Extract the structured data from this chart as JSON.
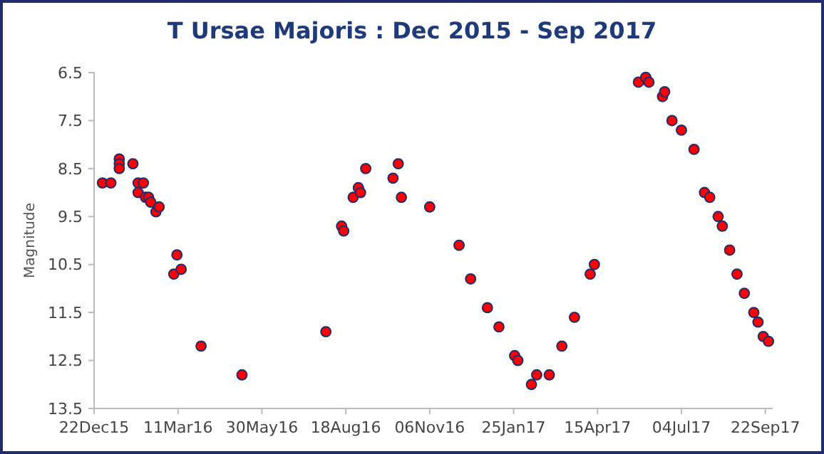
{
  "chart_data": {
    "type": "scatter",
    "title": "T Ursae Majoris :  Dec 2015 - Sep 2017",
    "ylabel": "Magnitude",
    "x": [
      "2015-12-30",
      "2016-01-07",
      "2016-01-15",
      "2016-01-15",
      "2016-01-15",
      "2016-01-28",
      "2016-02-02",
      "2016-02-02",
      "2016-02-07",
      "2016-02-09",
      "2016-02-12",
      "2016-02-14",
      "2016-02-19",
      "2016-02-22",
      "2016-03-07",
      "2016-03-10",
      "2016-03-14",
      "2016-04-02",
      "2016-05-11",
      "2016-07-30",
      "2016-08-14",
      "2016-08-16",
      "2016-08-25",
      "2016-08-30",
      "2016-09-01",
      "2016-09-06",
      "2016-10-02",
      "2016-10-07",
      "2016-10-10",
      "2016-11-06",
      "2016-12-04",
      "2016-12-15",
      "2016-12-31",
      "2017-01-11",
      "2017-01-26",
      "2017-01-29",
      "2017-02-11",
      "2017-02-16",
      "2017-02-28",
      "2017-03-12",
      "2017-03-24",
      "2017-04-08",
      "2017-04-12",
      "2017-05-24",
      "2017-05-31",
      "2017-06-03",
      "2017-06-16",
      "2017-06-18",
      "2017-06-25",
      "2017-07-04",
      "2017-07-16",
      "2017-07-26",
      "2017-07-31",
      "2017-08-08",
      "2017-08-12",
      "2017-08-19",
      "2017-08-26",
      "2017-09-02",
      "2017-09-11",
      "2017-09-15",
      "2017-09-20",
      "2017-09-25"
    ],
    "values": [
      8.8,
      8.8,
      8.3,
      8.4,
      8.5,
      8.4,
      8.8,
      9.0,
      8.8,
      9.1,
      9.1,
      9.2,
      9.4,
      9.3,
      10.7,
      10.3,
      10.6,
      12.2,
      12.8,
      11.9,
      9.7,
      9.8,
      9.1,
      8.9,
      9.0,
      8.5,
      8.7,
      8.4,
      9.1,
      9.3,
      10.1,
      10.8,
      11.4,
      11.8,
      12.4,
      12.5,
      13.0,
      12.8,
      12.8,
      12.2,
      11.6,
      10.7,
      10.5,
      6.7,
      6.6,
      6.7,
      7.0,
      6.9,
      7.5,
      7.7,
      8.1,
      9.0,
      9.1,
      9.5,
      9.7,
      10.2,
      10.7,
      11.1,
      11.5,
      11.7,
      12.0,
      12.1
    ],
    "color": "#ff0000",
    "marker": "circle",
    "xlim": [
      "2015-12-22",
      "2017-09-29"
    ],
    "xticks": [
      {
        "value": "2015-12-22",
        "label": "22Dec15"
      },
      {
        "value": "2016-03-11",
        "label": "11Mar16"
      },
      {
        "value": "2016-05-30",
        "label": "30May16"
      },
      {
        "value": "2016-08-18",
        "label": "18Aug16"
      },
      {
        "value": "2016-11-06",
        "label": "06Nov16"
      },
      {
        "value": "2017-01-25",
        "label": "25Jan17"
      },
      {
        "value": "2017-04-15",
        "label": "15Apr17"
      },
      {
        "value": "2017-07-04",
        "label": "04Jul17"
      },
      {
        "value": "2017-09-22",
        "label": "22Sep17"
      }
    ],
    "ylim": [
      13.5,
      6.5
    ],
    "yticks": [
      6.5,
      7.5,
      8.5,
      9.5,
      10.5,
      11.5,
      12.5,
      13.5
    ],
    "grid": false
  }
}
